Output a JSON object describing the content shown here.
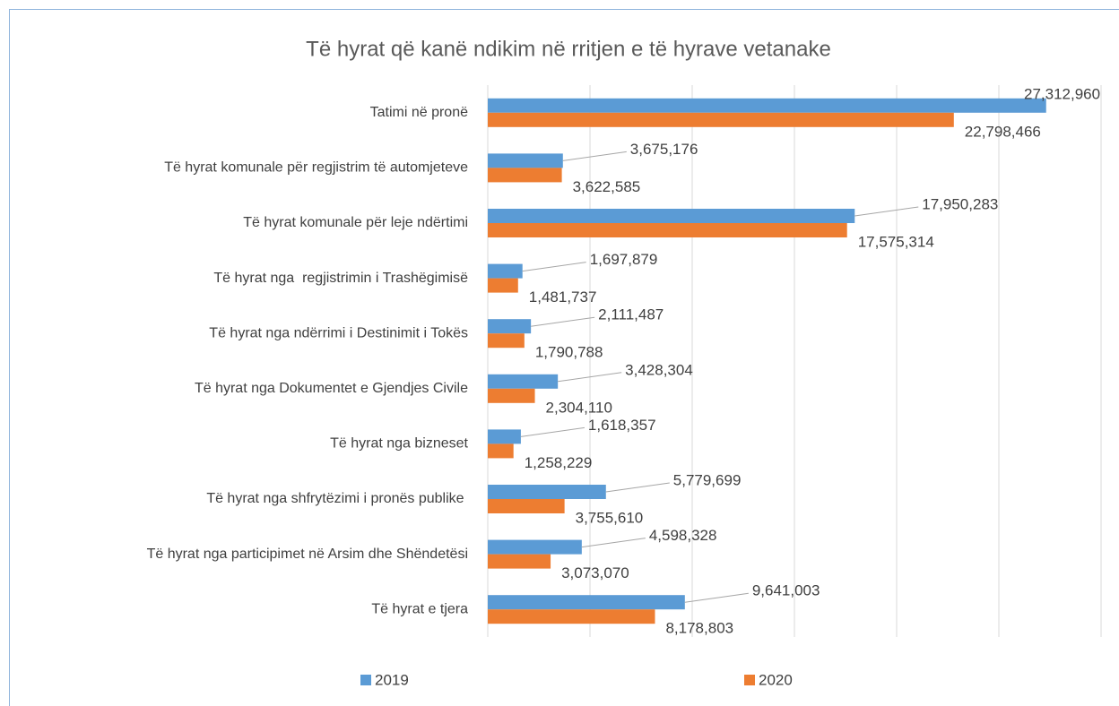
{
  "chart_data": {
    "type": "bar",
    "orientation": "horizontal",
    "title": "Të hyrat që kanë ndikim në rritjen e të hyrave vetanake",
    "categories": [
      "Tatimi në pronë",
      "Të hyrat komunale për regjistrim të automjeteve",
      "Të hyrat komunale për leje ndërtimi",
      "Të hyrat nga  regjistrimin i Trashëgimisë",
      "Të hyrat nga ndërrimi i Destinimit i Tokës",
      "Të hyrat nga Dokumentet e Gjendjes Civile",
      "Të hyrat nga bizneset",
      "Të hyrat nga shfrytëzimi i pronës publike ",
      "Të hyrat nga participimet në Arsim dhe Shëndetësi",
      "Të hyrat e tjera"
    ],
    "series": [
      {
        "name": "2019",
        "color": "#5b9bd5",
        "values": [
          27312960,
          3675176,
          17950283,
          1697879,
          2111487,
          3428304,
          1618357,
          5779699,
          4598328,
          9641003
        ],
        "value_labels": [
          "27,312,960",
          "3,675,176",
          "17,950,283",
          "1,697,879",
          "2,111,487",
          "3,428,304",
          "1,618,357",
          "5,779,699",
          "4,598,328",
          "9,641,003"
        ]
      },
      {
        "name": "2020",
        "color": "#ed7d31",
        "values": [
          22798466,
          3622585,
          17575314,
          1481737,
          1790788,
          2304110,
          1258229,
          3755610,
          3073070,
          8178803
        ],
        "value_labels": [
          "22,798,466",
          "3,622,585",
          "17,575,314",
          "1,481,737",
          "1,790,788",
          "2,304,110",
          "1,258,229",
          "3,755,610",
          "3,073,070",
          "8,178,803"
        ]
      }
    ],
    "xlim": [
      0,
      30000000
    ],
    "xticks": [
      0,
      5000000,
      10000000,
      15000000,
      20000000,
      25000000,
      30000000
    ],
    "grid": true,
    "legend": "bottom"
  }
}
